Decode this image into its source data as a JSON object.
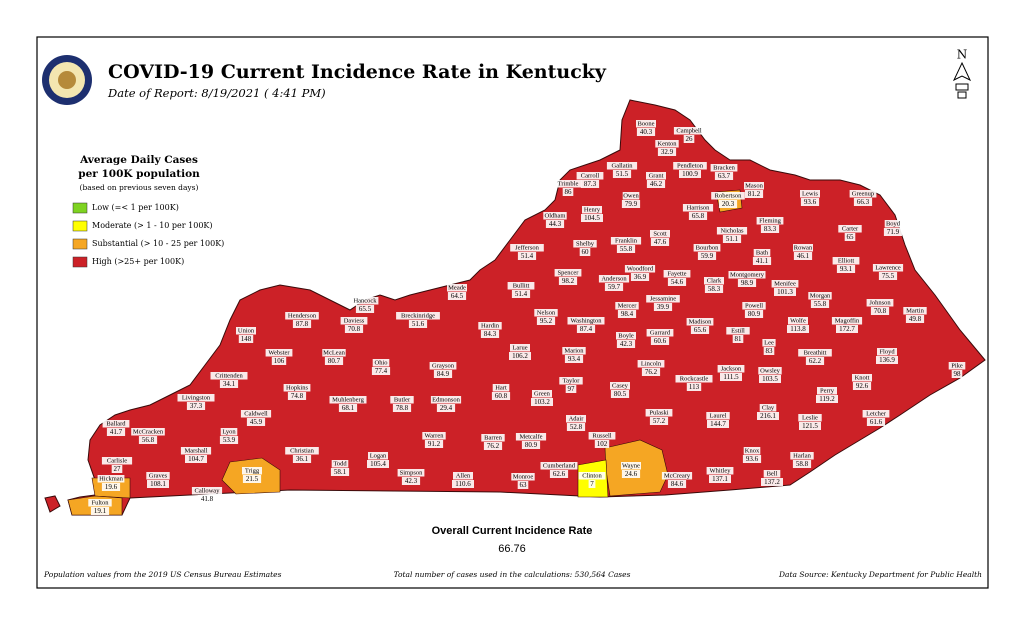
{
  "header": {
    "title": "COVID-19 Current Incidence Rate in Kentucky",
    "date": "Date of Report: 8/19/2021 ( 4:41 PM)",
    "north": "N"
  },
  "legend": {
    "title": [
      "Average Daily Cases",
      "per 100K population"
    ],
    "note": "(based on previous seven days)",
    "items": [
      {
        "label": "Low (=< 1 per 100K)",
        "color": "#7ed321"
      },
      {
        "label": "Moderate (> 1 - 10 per 100K)",
        "color": "#ffff00"
      },
      {
        "label": "Substantial (> 10 - 25 per 100K)",
        "color": "#f5a623"
      },
      {
        "label": "High (>25+ per 100K)",
        "color": "#cc2127"
      }
    ]
  },
  "counties": [
    {
      "name": "Boone",
      "value": 40.3
    },
    {
      "name": "Campbell",
      "value": 26
    },
    {
      "name": "Kenton",
      "value": 32.9
    },
    {
      "name": "Gallatin",
      "value": 51.5
    },
    {
      "name": "Carroll",
      "value": 87.3
    },
    {
      "name": "Trimble",
      "value": 86
    },
    {
      "name": "Pendleton",
      "value": 100.9
    },
    {
      "name": "Bracken",
      "value": 63.7
    },
    {
      "name": "Grant",
      "value": 46.2
    },
    {
      "name": "Owen",
      "value": 79.9
    },
    {
      "name": "Robertson",
      "value": 20.3,
      "color": "#f5a623"
    },
    {
      "name": "Mason",
      "value": 81.2
    },
    {
      "name": "Lewis",
      "value": 93.6
    },
    {
      "name": "Greenup",
      "value": 66.3
    },
    {
      "name": "Henry",
      "value": 104.5
    },
    {
      "name": "Oldham",
      "value": 44.3
    },
    {
      "name": "Harrison",
      "value": 65.8
    },
    {
      "name": "Fleming",
      "value": 83.3
    },
    {
      "name": "Boyd",
      "value": 71.9
    },
    {
      "name": "Carter",
      "value": 65
    },
    {
      "name": "Scott",
      "value": 47.6
    },
    {
      "name": "Nicholas",
      "value": 51.1
    },
    {
      "name": "Franklin",
      "value": 55.8
    },
    {
      "name": "Shelby",
      "value": 60
    },
    {
      "name": "Jefferson",
      "value": 51.4
    },
    {
      "name": "Bath",
      "value": 41.1
    },
    {
      "name": "Rowan",
      "value": 46.1
    },
    {
      "name": "Bourbon",
      "value": 59.9
    },
    {
      "name": "Elliott",
      "value": 93.1
    },
    {
      "name": "Lawrence",
      "value": 75.5
    },
    {
      "name": "Woodford",
      "value": 36.9
    },
    {
      "name": "Anderson",
      "value": 59.7
    },
    {
      "name": "Fayette",
      "value": 54.6
    },
    {
      "name": "Spencer",
      "value": 98.2
    },
    {
      "name": "Clark",
      "value": 58.3
    },
    {
      "name": "Montgomery",
      "value": 98.9
    },
    {
      "name": "Menifee",
      "value": 101.3
    },
    {
      "name": "Morgan",
      "value": 55.8
    },
    {
      "name": "Johnson",
      "value": 70.8
    },
    {
      "name": "Martin",
      "value": 49.8
    },
    {
      "name": "Bullitt",
      "value": 51.4
    },
    {
      "name": "Jessamine",
      "value": 39.9
    },
    {
      "name": "Hancock",
      "value": 65.5
    },
    {
      "name": "Meade",
      "value": 64.5
    },
    {
      "name": "Henderson",
      "value": 87.8
    },
    {
      "name": "Daviess",
      "value": 70.8
    },
    {
      "name": "Breckinridge",
      "value": 51.6
    },
    {
      "name": "Nelson",
      "value": 95.2
    },
    {
      "name": "Mercer",
      "value": 98.4
    },
    {
      "name": "Washington",
      "value": 87.4
    },
    {
      "name": "Powell",
      "value": 80.9
    },
    {
      "name": "Estill",
      "value": 81
    },
    {
      "name": "Madison",
      "value": 65.6
    },
    {
      "name": "Wolfe",
      "value": 113.8
    },
    {
      "name": "Magoffin",
      "value": 172.7
    },
    {
      "name": "Garrard",
      "value": 60.6
    },
    {
      "name": "Boyle",
      "value": 42.3
    },
    {
      "name": "Hardin",
      "value": 84.3
    },
    {
      "name": "Union",
      "value": 148
    },
    {
      "name": "Lee",
      "value": 83
    },
    {
      "name": "Floyd",
      "value": 136.9
    },
    {
      "name": "Breathitt",
      "value": 62.2
    },
    {
      "name": "Larue",
      "value": 106.2
    },
    {
      "name": "Marion",
      "value": 93.4
    },
    {
      "name": "Webster",
      "value": 106
    },
    {
      "name": "McLean",
      "value": 80.7
    },
    {
      "name": "Ohio",
      "value": 77.4
    },
    {
      "name": "Lincoln",
      "value": 76.2
    },
    {
      "name": "Jackson",
      "value": 111.5
    },
    {
      "name": "Owsley",
      "value": 103.5
    },
    {
      "name": "Rockcastle",
      "value": 113
    },
    {
      "name": "Pike",
      "value": 98
    },
    {
      "name": "Knott",
      "value": 92.6
    },
    {
      "name": "Crittenden",
      "value": 34.1
    },
    {
      "name": "Grayson",
      "value": 84.9
    },
    {
      "name": "Taylor",
      "value": 97
    },
    {
      "name": "Casey",
      "value": 80.5
    },
    {
      "name": "Hart",
      "value": 60.8
    },
    {
      "name": "Hopkins",
      "value": 74.8
    },
    {
      "name": "Muhlenberg",
      "value": 68.1
    },
    {
      "name": "Butler",
      "value": 78.8
    },
    {
      "name": "Livingston",
      "value": 37.3
    },
    {
      "name": "Perry",
      "value": 119.2
    },
    {
      "name": "Green",
      "value": 103.2
    },
    {
      "name": "Edmonson",
      "value": 29.4
    },
    {
      "name": "Clay",
      "value": 216.1
    },
    {
      "name": "Caldwell",
      "value": 45.9
    },
    {
      "name": "Letcher",
      "value": 61.6
    },
    {
      "name": "Pulaski",
      "value": 57.2
    },
    {
      "name": "Laurel",
      "value": 144.7
    },
    {
      "name": "Leslie",
      "value": 121.5
    },
    {
      "name": "Ballard",
      "value": 41.7
    },
    {
      "name": "McCracken",
      "value": 56.8
    },
    {
      "name": "Adair",
      "value": 52.8
    },
    {
      "name": "Lyon",
      "value": 53.9
    },
    {
      "name": "Warren",
      "value": 91.2
    },
    {
      "name": "Russell",
      "value": 102
    },
    {
      "name": "Barren",
      "value": 76.2
    },
    {
      "name": "Metcalfe",
      "value": 80.9
    },
    {
      "name": "Christian",
      "value": 36.1
    },
    {
      "name": "Marshall",
      "value": 104.7
    },
    {
      "name": "Knox",
      "value": 93.6
    },
    {
      "name": "Harlan",
      "value": 58.8
    },
    {
      "name": "Logan",
      "value": 105.4
    },
    {
      "name": "Carlisle",
      "value": 27
    },
    {
      "name": "Todd",
      "value": 58.1
    },
    {
      "name": "Wayne",
      "value": 24.6,
      "color": "#f5a623"
    },
    {
      "name": "Cumberland",
      "value": 62.6
    },
    {
      "name": "Trigg",
      "value": 21.5,
      "color": "#f5a623"
    },
    {
      "name": "Clinton",
      "value": 7,
      "color": "#ffff00"
    },
    {
      "name": "Graves",
      "value": 108.1
    },
    {
      "name": "Simpson",
      "value": 42.3
    },
    {
      "name": "Allen",
      "value": 110.6
    },
    {
      "name": "Monroe",
      "value": 63
    },
    {
      "name": "McCreary",
      "value": 84.6
    },
    {
      "name": "Whitley",
      "value": 137.1
    },
    {
      "name": "Bell",
      "value": 137.2
    },
    {
      "name": "Hickman",
      "value": 19.6,
      "color": "#f5a623"
    },
    {
      "name": "Calloway",
      "value": 41.8
    },
    {
      "name": "Fulton",
      "value": 19.1,
      "color": "#f5a623"
    }
  ],
  "overall": {
    "label": "Overall Current Incidence Rate",
    "value": 66.76
  },
  "footer": {
    "left": "Population values from the 2019 US Census Bureau Estimates",
    "center": "Total number of cases used in the calculations: 530,564 Cases",
    "right": "Data Source: Kentucky Department for Public Health"
  }
}
